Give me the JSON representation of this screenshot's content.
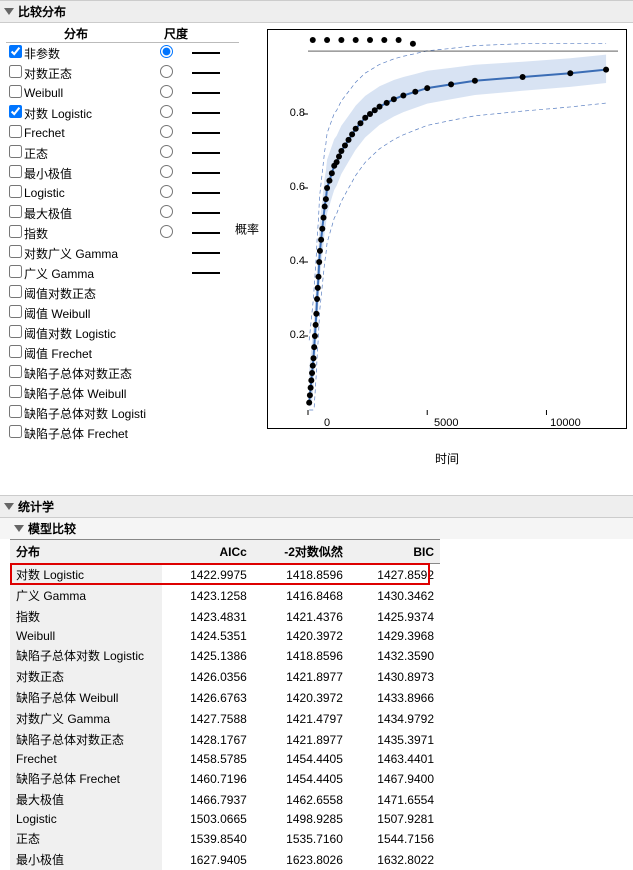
{
  "sections": {
    "compare_dist": "比较分布",
    "statistics": "统计学",
    "model_compare": "模型比较"
  },
  "dist_headers": {
    "name": "分布",
    "scale": "尺度"
  },
  "distributions": [
    {
      "label": "非参数",
      "checked": true,
      "radio": true,
      "line": true
    },
    {
      "label": "对数正态",
      "checked": false,
      "radio": true,
      "line": true
    },
    {
      "label": "Weibull",
      "checked": false,
      "radio": true,
      "line": true
    },
    {
      "label": "对数 Logistic",
      "checked": true,
      "radio": true,
      "line": true
    },
    {
      "label": "Frechet",
      "checked": false,
      "radio": true,
      "line": true
    },
    {
      "label": "正态",
      "checked": false,
      "radio": true,
      "line": true
    },
    {
      "label": "最小极值",
      "checked": false,
      "radio": true,
      "line": true
    },
    {
      "label": "Logistic",
      "checked": false,
      "radio": true,
      "line": true
    },
    {
      "label": "最大极值",
      "checked": false,
      "radio": true,
      "line": true
    },
    {
      "label": "指数",
      "checked": false,
      "radio": true,
      "line": true
    },
    {
      "label": "对数广义 Gamma",
      "checked": false,
      "radio": false,
      "line": true
    },
    {
      "label": "广义 Gamma",
      "checked": false,
      "radio": false,
      "line": true
    },
    {
      "label": "阈值对数正态",
      "checked": false,
      "radio": false,
      "line": false
    },
    {
      "label": "阈值 Weibull",
      "checked": false,
      "radio": false,
      "line": false
    },
    {
      "label": "阈值对数 Logistic",
      "checked": false,
      "radio": false,
      "line": false
    },
    {
      "label": "阈值 Frechet",
      "checked": false,
      "radio": false,
      "line": false
    },
    {
      "label": "缺陷子总体对数正态",
      "checked": false,
      "radio": false,
      "line": false
    },
    {
      "label": "缺陷子总体 Weibull",
      "checked": false,
      "radio": false,
      "line": false
    },
    {
      "label": "缺陷子总体对数 Logistic",
      "checked": false,
      "radio": false,
      "line": false
    },
    {
      "label": "缺陷子总体 Frechet",
      "checked": false,
      "radio": false,
      "line": false
    }
  ],
  "chart": {
    "ylabel": "概率",
    "xlabel": "时间",
    "xlim": [
      0,
      13000
    ],
    "ylim": [
      0,
      1.0
    ],
    "xticks": [
      0,
      5000,
      10000
    ],
    "yticks": [
      0.2,
      0.4,
      0.6,
      0.8
    ],
    "curve_color": "#3b6db5",
    "band_color": "#c7d7ee",
    "point_color": "#000000",
    "dash_color": "#5a7fc2",
    "points": [
      [
        50,
        0.02
      ],
      [
        80,
        0.04
      ],
      [
        110,
        0.06
      ],
      [
        140,
        0.08
      ],
      [
        170,
        0.1
      ],
      [
        200,
        0.12
      ],
      [
        230,
        0.14
      ],
      [
        260,
        0.17
      ],
      [
        290,
        0.2
      ],
      [
        320,
        0.23
      ],
      [
        350,
        0.26
      ],
      [
        380,
        0.3
      ],
      [
        410,
        0.33
      ],
      [
        440,
        0.36
      ],
      [
        470,
        0.4
      ],
      [
        500,
        0.43
      ],
      [
        550,
        0.46
      ],
      [
        600,
        0.49
      ],
      [
        650,
        0.52
      ],
      [
        700,
        0.55
      ],
      [
        750,
        0.57
      ],
      [
        800,
        0.6
      ],
      [
        900,
        0.62
      ],
      [
        1000,
        0.64
      ],
      [
        1100,
        0.66
      ],
      [
        1200,
        0.67
      ],
      [
        1300,
        0.685
      ],
      [
        1400,
        0.7
      ],
      [
        1550,
        0.715
      ],
      [
        1700,
        0.73
      ],
      [
        1850,
        0.745
      ],
      [
        2000,
        0.76
      ],
      [
        2200,
        0.775
      ],
      [
        2400,
        0.79
      ],
      [
        2600,
        0.8
      ],
      [
        2800,
        0.81
      ],
      [
        3000,
        0.82
      ],
      [
        3300,
        0.83
      ],
      [
        3600,
        0.84
      ],
      [
        4000,
        0.85
      ],
      [
        4500,
        0.86
      ],
      [
        5000,
        0.87
      ],
      [
        6000,
        0.88
      ],
      [
        7000,
        0.89
      ],
      [
        9000,
        0.9
      ],
      [
        11000,
        0.91
      ],
      [
        12500,
        0.92
      ]
    ],
    "top_dots": [
      [
        200,
        1.0
      ],
      [
        800,
        1.0
      ],
      [
        1400,
        1.0
      ],
      [
        2000,
        1.0
      ],
      [
        2600,
        1.0
      ],
      [
        3200,
        1.0
      ],
      [
        3800,
        1.0
      ],
      [
        4400,
        0.99
      ]
    ]
  },
  "stats_headers": {
    "dist": "分布",
    "aicc": "AICc",
    "neg2ll": "-2对数似然",
    "bic": "BIC"
  },
  "stats_rows": [
    {
      "dist": "对数 Logistic",
      "aicc": "1422.9975",
      "neg2ll": "1418.8596",
      "bic": "1427.8592",
      "hl": true
    },
    {
      "dist": "广义 Gamma",
      "aicc": "1423.1258",
      "neg2ll": "1416.8468",
      "bic": "1430.3462",
      "hl": false
    },
    {
      "dist": "指数",
      "aicc": "1423.4831",
      "neg2ll": "1421.4376",
      "bic": "1425.9374",
      "hl": false
    },
    {
      "dist": "Weibull",
      "aicc": "1424.5351",
      "neg2ll": "1420.3972",
      "bic": "1429.3968",
      "hl": false
    },
    {
      "dist": "缺陷子总体对数 Logistic",
      "aicc": "1425.1386",
      "neg2ll": "1418.8596",
      "bic": "1432.3590",
      "hl": false
    },
    {
      "dist": "对数正态",
      "aicc": "1426.0356",
      "neg2ll": "1421.8977",
      "bic": "1430.8973",
      "hl": false
    },
    {
      "dist": "缺陷子总体 Weibull",
      "aicc": "1426.6763",
      "neg2ll": "1420.3972",
      "bic": "1433.8966",
      "hl": false
    },
    {
      "dist": "对数广义 Gamma",
      "aicc": "1427.7588",
      "neg2ll": "1421.4797",
      "bic": "1434.9792",
      "hl": false
    },
    {
      "dist": "缺陷子总体对数正态",
      "aicc": "1428.1767",
      "neg2ll": "1421.8977",
      "bic": "1435.3971",
      "hl": false
    },
    {
      "dist": "Frechet",
      "aicc": "1458.5785",
      "neg2ll": "1454.4405",
      "bic": "1463.4401",
      "hl": false
    },
    {
      "dist": "缺陷子总体 Frechet",
      "aicc": "1460.7196",
      "neg2ll": "1454.4405",
      "bic": "1467.9400",
      "hl": false
    },
    {
      "dist": "最大极值",
      "aicc": "1466.7937",
      "neg2ll": "1462.6558",
      "bic": "1471.6554",
      "hl": false
    },
    {
      "dist": "Logistic",
      "aicc": "1503.0665",
      "neg2ll": "1498.9285",
      "bic": "1507.9281",
      "hl": false
    },
    {
      "dist": "正态",
      "aicc": "1539.8540",
      "neg2ll": "1535.7160",
      "bic": "1544.7156",
      "hl": false
    },
    {
      "dist": "最小极值",
      "aicc": "1627.9405",
      "neg2ll": "1623.8026",
      "bic": "1632.8022",
      "hl": false
    }
  ]
}
